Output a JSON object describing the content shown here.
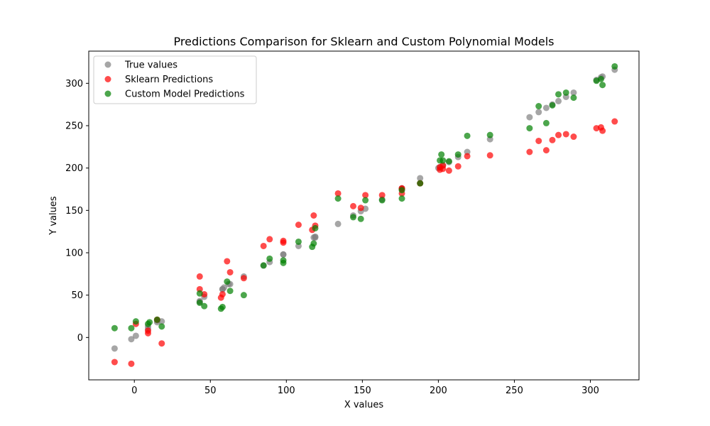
{
  "chart_data": {
    "type": "scatter",
    "title": "Predictions Comparison for Sklearn and Custom Polynomial Models",
    "xlabel": "X values",
    "ylabel": "Y values",
    "xlim": [
      -30,
      332
    ],
    "ylim": [
      -50,
      338
    ],
    "xticks": [
      0,
      50,
      100,
      150,
      200,
      250,
      300
    ],
    "yticks": [
      0,
      50,
      100,
      150,
      200,
      250,
      300
    ],
    "grid": false,
    "legend_position": "upper-left",
    "series": [
      {
        "name": "True values",
        "color": "#808080",
        "points": [
          [
            -13,
            -13
          ],
          [
            -2,
            -2
          ],
          [
            1,
            2
          ],
          [
            9,
            10
          ],
          [
            9,
            13
          ],
          [
            15,
            18
          ],
          [
            18,
            19
          ],
          [
            15,
            20
          ],
          [
            43,
            43
          ],
          [
            43,
            42
          ],
          [
            46,
            48
          ],
          [
            58,
            57
          ],
          [
            58,
            57
          ],
          [
            59,
            59
          ],
          [
            62,
            63
          ],
          [
            63,
            63
          ],
          [
            72,
            72
          ],
          [
            85,
            85
          ],
          [
            89,
            89
          ],
          [
            98,
            98
          ],
          [
            98,
            98
          ],
          [
            108,
            108
          ],
          [
            118,
            118
          ],
          [
            119,
            119
          ],
          [
            119,
            118
          ],
          [
            134,
            134
          ],
          [
            144,
            144
          ],
          [
            149,
            149
          ],
          [
            152,
            152
          ],
          [
            163,
            163
          ],
          [
            176,
            176
          ],
          [
            176,
            176
          ],
          [
            188,
            188
          ],
          [
            188,
            182
          ],
          [
            200,
            200
          ],
          [
            201,
            201
          ],
          [
            203,
            203
          ],
          [
            207,
            207
          ],
          [
            213,
            213
          ],
          [
            219,
            219
          ],
          [
            234,
            234
          ],
          [
            260,
            260
          ],
          [
            266,
            266
          ],
          [
            271,
            271
          ],
          [
            275,
            275
          ],
          [
            279,
            279
          ],
          [
            284,
            284
          ],
          [
            289,
            289
          ],
          [
            304,
            304
          ],
          [
            307,
            307
          ],
          [
            308,
            308
          ],
          [
            316,
            316
          ]
        ]
      },
      {
        "name": "Sklearn Predictions",
        "color": "#ff0000",
        "points": [
          [
            -13,
            -29
          ],
          [
            -2,
            -31
          ],
          [
            1,
            16
          ],
          [
            9,
            5
          ],
          [
            9,
            8
          ],
          [
            15,
            21
          ],
          [
            18,
            -7
          ],
          [
            43,
            72
          ],
          [
            43,
            57
          ],
          [
            46,
            51
          ],
          [
            57,
            47
          ],
          [
            58,
            51
          ],
          [
            61,
            90
          ],
          [
            63,
            77
          ],
          [
            72,
            70
          ],
          [
            85,
            108
          ],
          [
            89,
            116
          ],
          [
            98,
            114
          ],
          [
            98,
            112
          ],
          [
            108,
            133
          ],
          [
            117,
            127
          ],
          [
            118,
            144
          ],
          [
            119,
            132
          ],
          [
            134,
            170
          ],
          [
            144,
            155
          ],
          [
            149,
            153
          ],
          [
            152,
            168
          ],
          [
            163,
            168
          ],
          [
            176,
            170
          ],
          [
            176,
            175
          ],
          [
            176,
            176
          ],
          [
            188,
            182
          ],
          [
            201,
            198
          ],
          [
            201,
            201
          ],
          [
            203,
            199
          ],
          [
            203,
            203
          ],
          [
            207,
            197
          ],
          [
            213,
            202
          ],
          [
            219,
            214
          ],
          [
            234,
            215
          ],
          [
            260,
            219
          ],
          [
            266,
            232
          ],
          [
            271,
            221
          ],
          [
            275,
            233
          ],
          [
            279,
            239
          ],
          [
            284,
            240
          ],
          [
            289,
            237
          ],
          [
            304,
            247
          ],
          [
            307,
            248
          ],
          [
            308,
            244
          ],
          [
            316,
            255
          ]
        ]
      },
      {
        "name": "Custom Model Predictions",
        "color": "#008000",
        "points": [
          [
            -13,
            11
          ],
          [
            -2,
            11
          ],
          [
            1,
            19
          ],
          [
            9,
            16
          ],
          [
            10,
            18
          ],
          [
            15,
            21
          ],
          [
            18,
            13
          ],
          [
            43,
            41
          ],
          [
            43,
            52
          ],
          [
            46,
            37
          ],
          [
            57,
            34
          ],
          [
            58,
            36
          ],
          [
            61,
            66
          ],
          [
            63,
            55
          ],
          [
            72,
            50
          ],
          [
            85,
            85
          ],
          [
            89,
            93
          ],
          [
            98,
            88
          ],
          [
            98,
            91
          ],
          [
            108,
            113
          ],
          [
            117,
            107
          ],
          [
            118,
            111
          ],
          [
            119,
            129
          ],
          [
            134,
            164
          ],
          [
            144,
            142
          ],
          [
            149,
            140
          ],
          [
            152,
            162
          ],
          [
            163,
            162
          ],
          [
            176,
            164
          ],
          [
            176,
            174
          ],
          [
            188,
            182
          ],
          [
            201,
            209
          ],
          [
            202,
            216
          ],
          [
            203,
            209
          ],
          [
            207,
            208
          ],
          [
            213,
            216
          ],
          [
            219,
            238
          ],
          [
            234,
            239
          ],
          [
            260,
            247
          ],
          [
            266,
            273
          ],
          [
            271,
            253
          ],
          [
            275,
            274
          ],
          [
            279,
            287
          ],
          [
            284,
            289
          ],
          [
            289,
            283
          ],
          [
            304,
            303
          ],
          [
            307,
            305
          ],
          [
            308,
            298
          ],
          [
            316,
            320
          ]
        ]
      }
    ]
  }
}
